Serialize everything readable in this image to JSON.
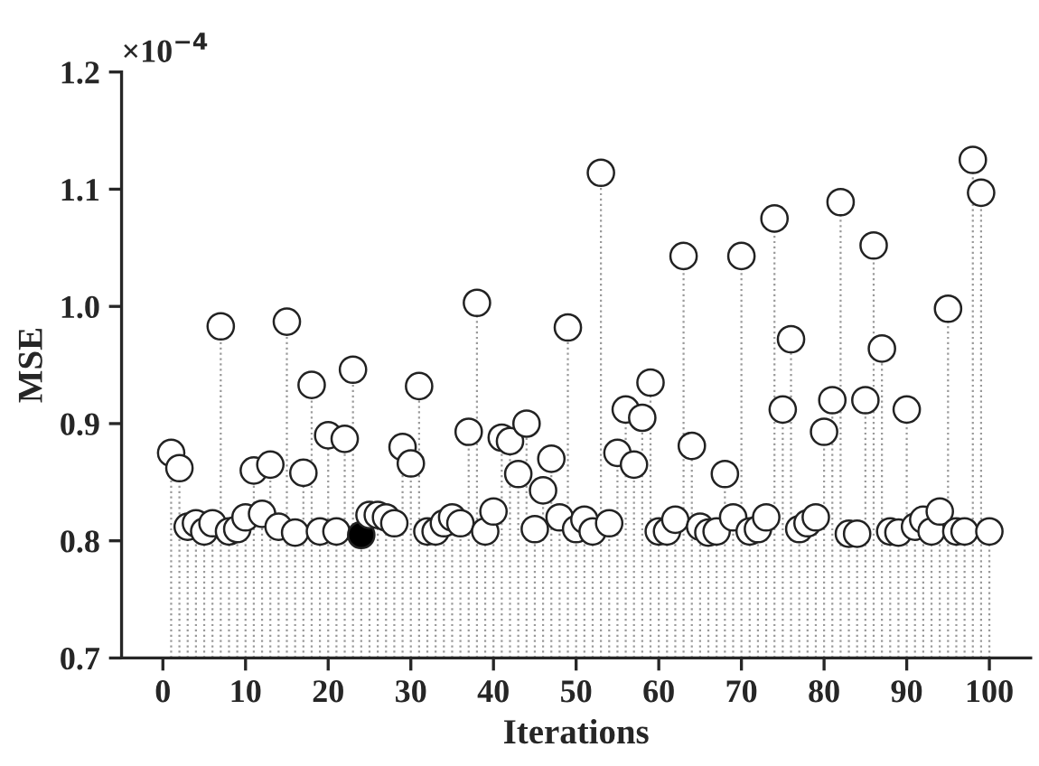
{
  "chart_data": {
    "type": "lollipop",
    "xlabel": "Iterations",
    "ylabel": "MSE",
    "annotations": [
      "×10$^{−4}$"
    ],
    "x": [
      1,
      2,
      3,
      4,
      5,
      6,
      7,
      8,
      9,
      10,
      11,
      12,
      13,
      14,
      15,
      16,
      17,
      18,
      19,
      20,
      21,
      22,
      23,
      24,
      25,
      26,
      27,
      28,
      29,
      30,
      31,
      32,
      33,
      34,
      35,
      36,
      37,
      38,
      39,
      40,
      41,
      42,
      43,
      44,
      45,
      46,
      47,
      48,
      49,
      50,
      51,
      52,
      53,
      54,
      55,
      56,
      57,
      58,
      59,
      60,
      61,
      62,
      63,
      64,
      65,
      66,
      67,
      68,
      69,
      70,
      71,
      72,
      73,
      74,
      75,
      76,
      77,
      78,
      79,
      80,
      81,
      82,
      83,
      84,
      85,
      86,
      87,
      88,
      89,
      90,
      91,
      92,
      93,
      94,
      95,
      96,
      97,
      98,
      99,
      100
    ],
    "values": [
      0.875,
      0.862,
      0.812,
      0.815,
      0.808,
      0.815,
      0.983,
      0.808,
      0.81,
      0.82,
      0.86,
      0.823,
      0.865,
      0.812,
      0.987,
      0.807,
      0.858,
      0.933,
      0.808,
      0.89,
      0.808,
      0.887,
      0.946,
      0.805,
      0.822,
      0.822,
      0.82,
      0.815,
      0.88,
      0.866,
      0.932,
      0.808,
      0.808,
      0.815,
      0.82,
      0.815,
      0.893,
      1.003,
      0.808,
      0.825,
      0.888,
      0.885,
      0.857,
      0.9,
      0.81,
      0.843,
      0.87,
      0.82,
      0.982,
      0.81,
      0.818,
      0.808,
      1.114,
      0.815,
      0.875,
      0.912,
      0.865,
      0.905,
      0.935,
      0.808,
      0.808,
      0.818,
      1.043,
      0.881,
      0.812,
      0.807,
      0.808,
      0.857,
      0.82,
      1.043,
      0.808,
      0.81,
      0.82,
      1.075,
      0.912,
      0.972,
      0.81,
      0.815,
      0.82,
      0.893,
      0.92,
      1.089,
      0.806,
      0.806,
      0.92,
      1.052,
      0.964,
      0.808,
      0.807,
      0.912,
      0.812,
      0.818,
      0.808,
      0.825,
      0.998,
      0.808,
      0.808,
      1.125,
      1.097,
      0.808
    ],
    "colors": [
      "#ffffff",
      "#ffffff",
      "#ffffff",
      "#ffffff",
      "#ffffff",
      "#ffffff",
      "#ffffff",
      "#ffffff",
      "#ffffff",
      "#ffffff",
      "#ffffff",
      "#ffffff",
      "#ffffff",
      "#ffffff",
      "#ffffff",
      "#ffffff",
      "#ffffff",
      "#ffffff",
      "#ffffff",
      "#ffffff",
      "#ffffff",
      "#ffffff",
      "#ffffff",
      "#000000",
      "#ffffff",
      "#ffffff",
      "#ffffff",
      "#ffffff",
      "#ffffff",
      "#ffffff",
      "#ffffff",
      "#ffffff",
      "#ffffff",
      "#ffffff",
      "#ffffff",
      "#ffffff",
      "#ffffff",
      "#ffffff",
      "#ffffff",
      "#ffffff",
      "#ffffff",
      "#ffffff",
      "#ffffff",
      "#ffffff",
      "#ffffff",
      "#ffffff",
      "#ffffff",
      "#ffffff",
      "#ffffff",
      "#ffffff",
      "#ffffff",
      "#ffffff",
      "#ffffff",
      "#ffffff",
      "#ffffff",
      "#ffffff",
      "#ffffff",
      "#ffffff",
      "#ffffff",
      "#ffffff",
      "#ffffff",
      "#ffffff",
      "#ffffff",
      "#ffffff",
      "#ffffff",
      "#ffffff",
      "#ffffff",
      "#ffffff",
      "#ffffff",
      "#ffffff",
      "#ffffff",
      "#ffffff",
      "#ffffff",
      "#ffffff",
      "#ffffff",
      "#ffffff",
      "#ffffff",
      "#ffffff",
      "#ffffff",
      "#ffffff",
      "#ffffff",
      "#ffffff",
      "#ffffff",
      "#ffffff",
      "#ffffff",
      "#ffffff",
      "#ffffff",
      "#ffffff",
      "#ffffff",
      "#ffffff",
      "#ffffff",
      "#ffffff",
      "#ffffff",
      "#ffffff",
      "#ffffff",
      "#ffffff",
      "#ffffff",
      "#ffffff",
      "#ffffff",
      "#ffffff"
    ],
    "xlim": [
      -5,
      105
    ],
    "xticks": [
      0,
      10,
      20,
      30,
      40,
      50,
      60,
      70,
      80,
      90,
      100
    ],
    "ylim": [
      0.7,
      1.2
    ],
    "yticks": [
      0.7,
      0.8,
      0.9,
      {
        "value": 1,
        "label": "1.0"
      },
      1.1,
      1.2
    ],
    "marker": "circle",
    "line_style": "dotted",
    "grid": false,
    "legend": false
  }
}
